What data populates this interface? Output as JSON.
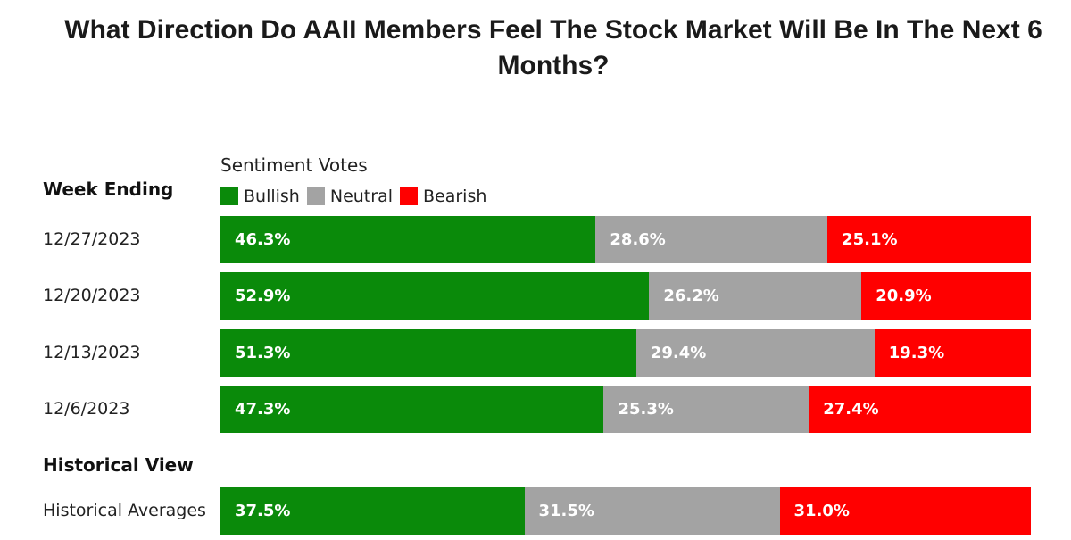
{
  "title": "What Direction Do AAII Members Feel The Stock Market Will Be In The Next 6 Months?",
  "chart_data": {
    "type": "bar",
    "stacked": true,
    "orientation": "horizontal",
    "title": "What Direction Do AAII Members Feel The Stock Market Will Be In The Next 6 Months?",
    "subtitle": "Sentiment Votes",
    "legend": {
      "position": "top-left",
      "entries": [
        "Bullish",
        "Neutral",
        "Bearish"
      ]
    },
    "colors": {
      "Bullish": "#0a8a0a",
      "Neutral": "#a3a3a3",
      "Bearish": "#ff0000"
    },
    "week_heading": "Week Ending",
    "historical_heading": "Historical View",
    "categories": [
      "12/27/2023",
      "12/20/2023",
      "12/13/2023",
      "12/6/2023",
      "Historical Averages"
    ],
    "series": [
      {
        "name": "Bullish",
        "values": [
          46.3,
          52.9,
          51.3,
          47.3,
          37.5
        ]
      },
      {
        "name": "Neutral",
        "values": [
          28.6,
          26.2,
          29.4,
          25.3,
          31.5
        ]
      },
      {
        "name": "Bearish",
        "values": [
          25.1,
          20.9,
          19.3,
          27.4,
          31.0
        ]
      }
    ],
    "value_labels": [
      [
        "46.3%",
        "28.6%",
        "25.1%"
      ],
      [
        "52.9%",
        "26.2%",
        "20.9%"
      ],
      [
        "51.3%",
        "29.4%",
        "19.3%"
      ],
      [
        "47.3%",
        "25.3%",
        "27.4%"
      ],
      [
        "37.5%",
        "31.5%",
        "31.0%"
      ]
    ],
    "xlim": [
      0,
      100
    ]
  }
}
